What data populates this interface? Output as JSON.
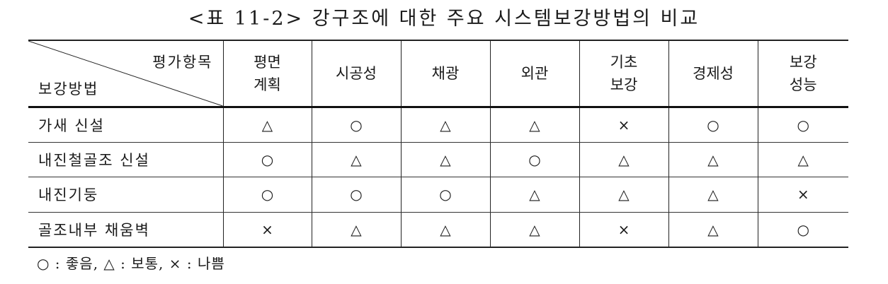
{
  "title": "<표 11-2> 강구조에 대한 주요 시스템보강방법의 비교",
  "table": {
    "corner_top": "평가항목",
    "corner_bottom": "보강방법",
    "columns": [
      {
        "line1": "평면",
        "line2": "계획"
      },
      {
        "line1": "시공성",
        "line2": ""
      },
      {
        "line1": "채광",
        "line2": ""
      },
      {
        "line1": "외관",
        "line2": ""
      },
      {
        "line1": "기초",
        "line2": "보강"
      },
      {
        "line1": "경제성",
        "line2": ""
      },
      {
        "line1": "보강",
        "line2": "성능"
      }
    ],
    "rows": [
      {
        "method": "가새 신설",
        "values": [
          "△",
          "○",
          "△",
          "△",
          "×",
          "○",
          "○"
        ]
      },
      {
        "method": "내진철골조 신설",
        "values": [
          "○",
          "△",
          "△",
          "○",
          "△",
          "△",
          "△"
        ]
      },
      {
        "method": "내진기둥",
        "values": [
          "○",
          "○",
          "○",
          "△",
          "△",
          "△",
          "×"
        ]
      },
      {
        "method": "골조내부 채움벽",
        "values": [
          "×",
          "△",
          "△",
          "△",
          "×",
          "△",
          "○"
        ]
      }
    ]
  },
  "legend": "○ : 좋음,  △ : 보통,  × : 나쁨"
}
